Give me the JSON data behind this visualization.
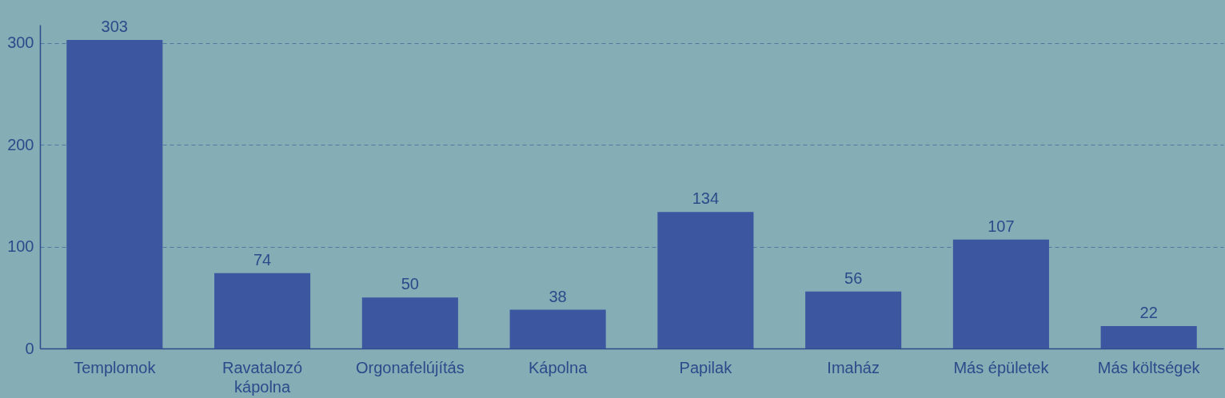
{
  "chart_data": {
    "type": "bar",
    "categories": [
      "Templomok",
      "Ravatalozó kápolna",
      "Orgonafelújítás",
      "Kápolna",
      "Papilak",
      "Imaház",
      "Más épületek",
      "Más költségek"
    ],
    "values": [
      303,
      74,
      50,
      38,
      134,
      56,
      107,
      22
    ],
    "color": "#3c57a0",
    "ylim": [
      0,
      318
    ],
    "yticks": [
      0,
      100,
      200,
      300
    ],
    "grid": "y",
    "data_labels": true
  }
}
